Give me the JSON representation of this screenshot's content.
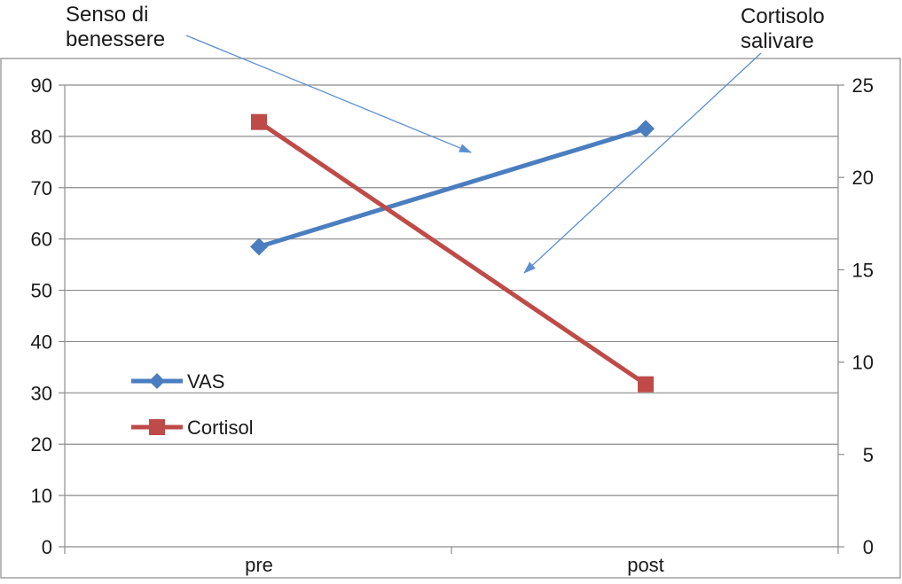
{
  "chart_data": {
    "type": "line",
    "title": "",
    "xlabel": "",
    "ylabel": "",
    "categories": [
      "pre",
      "post"
    ],
    "y_left": {
      "min": 0,
      "max": 90,
      "step": 10,
      "ticks": [
        "0",
        "10",
        "20",
        "30",
        "40",
        "50",
        "60",
        "70",
        "80",
        "90"
      ]
    },
    "y_right": {
      "min": 0,
      "max": 25,
      "step": 5,
      "ticks": [
        "0",
        "5",
        "10",
        "15",
        "20",
        "25"
      ]
    },
    "grid": true,
    "series": [
      {
        "name": "VAS",
        "axis": "left",
        "values": [
          58.5,
          81.5
        ],
        "color": "#4a7ebf",
        "marker": "diamond"
      },
      {
        "name": "Cortisol",
        "axis": "right",
        "values": [
          23.0,
          8.8
        ],
        "color": "#be4b48",
        "marker": "square"
      }
    ],
    "legend": {
      "position": "left-middle",
      "entries": [
        "VAS",
        "Cortisol"
      ]
    },
    "annotations": [
      {
        "lines": [
          "Senso di",
          "benessere"
        ],
        "target_series": "VAS",
        "arrow_color": "#5b8fd0"
      },
      {
        "lines": [
          "Cortisolo",
          "salivare"
        ],
        "target_series": "Cortisol",
        "arrow_color": "#5b8fd0"
      }
    ],
    "colors": {
      "grid": "#8c8c8c",
      "axis": "#8c8c8c",
      "frame": "#a0a0a0"
    }
  }
}
